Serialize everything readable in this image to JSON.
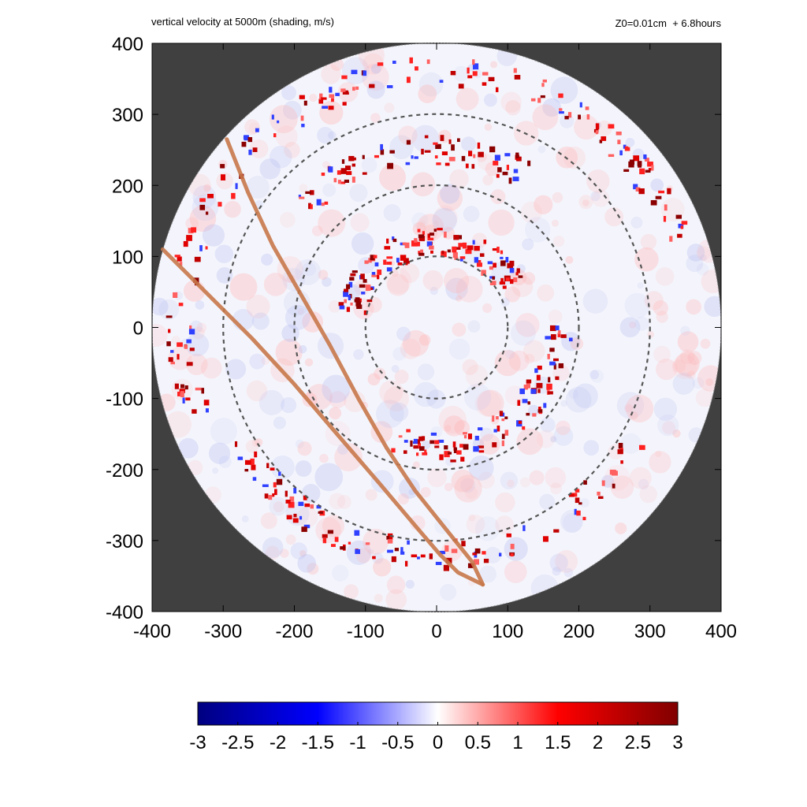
{
  "header": {
    "title": "vertical velocity at 5000m (shading, m/s)",
    "run_info": "Z0=0.01cm  + 6.8hours"
  },
  "chart_data": {
    "type": "heatmap",
    "title": "vertical velocity at 5000m (shading, m/s)",
    "xlabel": "",
    "ylabel": "",
    "xlim": [
      -400,
      400
    ],
    "ylim": [
      -400,
      400
    ],
    "x_ticks": [
      -400,
      -300,
      -200,
      -100,
      0,
      100,
      200,
      300,
      400
    ],
    "y_ticks": [
      -400,
      -300,
      -200,
      -100,
      0,
      100,
      200,
      300,
      400
    ],
    "x_tick_labels": [
      "-400",
      "-300",
      "-200",
      "-100",
      "0",
      "100",
      "200",
      "300",
      "400"
    ],
    "y_tick_labels": [
      "-400",
      "-300",
      "-200",
      "-100",
      "0",
      "100",
      "200",
      "300",
      "400"
    ],
    "domain_radius": 400,
    "outside_domain_color": "#404040",
    "range_rings": [
      100,
      200,
      300
    ],
    "colorbar": {
      "min": -3,
      "max": 3,
      "ticks": [
        -3,
        -2.5,
        -2,
        -1.5,
        -1,
        -0.5,
        0,
        0.5,
        1,
        1.5,
        2,
        2.5,
        3
      ],
      "tick_labels": [
        "-3",
        "-2.5",
        "-2",
        "-1.5",
        "-1",
        "-0.5",
        "0",
        "0.5",
        "1",
        "1.5",
        "2",
        "2.5",
        "3"
      ],
      "colors": [
        "#000080",
        "#0000ff",
        "#ffffff",
        "#ff0000",
        "#800000"
      ]
    },
    "tracks": [
      {
        "color": "#c8784a",
        "points": [
          [
            -385,
            110
          ],
          [
            -330,
            55
          ],
          [
            -260,
            -15
          ],
          [
            -200,
            -80
          ],
          [
            -140,
            -150
          ],
          [
            -80,
            -220
          ],
          [
            -25,
            -285
          ],
          [
            5,
            -320
          ],
          [
            30,
            -345
          ],
          [
            65,
            -362
          ]
        ]
      },
      {
        "color": "#c8784a",
        "points": [
          [
            -295,
            265
          ],
          [
            -265,
            190
          ],
          [
            -230,
            115
          ],
          [
            -190,
            45
          ],
          [
            -150,
            -25
          ],
          [
            -110,
            -100
          ],
          [
            -70,
            -170
          ],
          [
            -30,
            -230
          ],
          [
            10,
            -280
          ],
          [
            50,
            -330
          ],
          [
            65,
            -362
          ]
        ]
      }
    ],
    "features": [
      {
        "type": "spiral-band",
        "radius": 360,
        "angle_start": 20,
        "angle_end": 200
      },
      {
        "type": "spiral-band",
        "radius": 320,
        "angle_start": 210,
        "angle_end": 330
      },
      {
        "type": "spiral-band",
        "radius": 250,
        "angle_start": 60,
        "angle_end": 140
      },
      {
        "type": "spiral-band",
        "radius": 170,
        "angle_start": 250,
        "angle_end": 360
      },
      {
        "type": "spiral-band",
        "radius": 120,
        "angle_start": 30,
        "angle_end": 170
      }
    ]
  }
}
